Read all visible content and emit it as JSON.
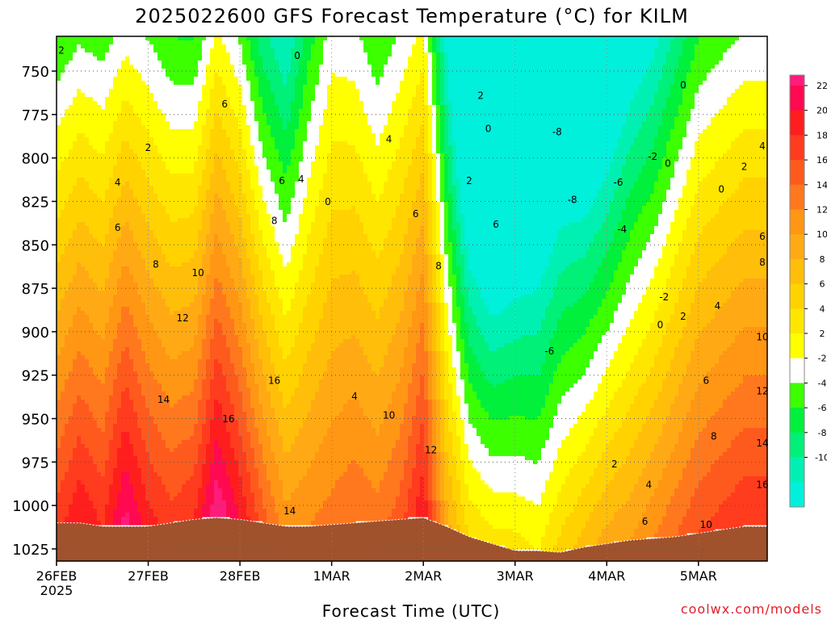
{
  "chart_data": {
    "type": "heatmap",
    "title": "2025022600 GFS Forecast Temperature (°C) for KILM",
    "xlabel": "Forecast Time (UTC)",
    "ylabel": "",
    "watermark": "coolwx.com/models",
    "x_ticks": [
      {
        "label": "26FEB",
        "sublabel": "2025",
        "hour": 0
      },
      {
        "label": "27FEB",
        "hour": 24
      },
      {
        "label": "28FEB",
        "hour": 48
      },
      {
        "label": "1MAR",
        "hour": 72
      },
      {
        "label": "2MAR",
        "hour": 96
      },
      {
        "label": "3MAR",
        "hour": 120
      },
      {
        "label": "4MAR",
        "hour": 144
      },
      {
        "label": "5MAR",
        "hour": 168
      }
    ],
    "x_range_hours": [
      0,
      186
    ],
    "y_ticks": [
      750,
      775,
      800,
      825,
      850,
      875,
      900,
      925,
      950,
      975,
      1000,
      1025
    ],
    "y_range_hpa": [
      730,
      1032
    ],
    "y_inverted": true,
    "grid": true,
    "colorbar": {
      "ticks": [
        22,
        20,
        18,
        16,
        14,
        12,
        10,
        8,
        6,
        4,
        2,
        -2,
        -4,
        -6,
        -8,
        -10
      ],
      "levels": [
        {
          "lo": 22,
          "hi": 24,
          "color": "#ff1c7a"
        },
        {
          "lo": 20,
          "hi": 22,
          "color": "#ff0a50"
        },
        {
          "lo": 18,
          "hi": 20,
          "color": "#ff1e1e"
        },
        {
          "lo": 16,
          "hi": 18,
          "color": "#ff3c1e"
        },
        {
          "lo": 14,
          "hi": 16,
          "color": "#ff5a1e"
        },
        {
          "lo": 12,
          "hi": 14,
          "color": "#ff781e"
        },
        {
          "lo": 10,
          "hi": 12,
          "color": "#ff9614"
        },
        {
          "lo": 8,
          "hi": 10,
          "color": "#ffaa14"
        },
        {
          "lo": 6,
          "hi": 8,
          "color": "#ffbe0a"
        },
        {
          "lo": 4,
          "hi": 6,
          "color": "#ffd200"
        },
        {
          "lo": 2,
          "hi": 4,
          "color": "#ffe600"
        },
        {
          "lo": 0,
          "hi": 2,
          "color": "#ffff00"
        },
        {
          "lo": -2,
          "hi": 0,
          "color": "#ffffff"
        },
        {
          "lo": -4,
          "hi": -2,
          "color": "#3cff00"
        },
        {
          "lo": -6,
          "hi": -4,
          "color": "#00f03c"
        },
        {
          "lo": -8,
          "hi": -6,
          "color": "#00f078"
        },
        {
          "lo": -10,
          "hi": -8,
          "color": "#00f0b4"
        },
        {
          "lo": -12,
          "hi": -10,
          "color": "#00f0dc"
        }
      ]
    },
    "temperature_profiles": [
      {
        "hour": 0,
        "surface_hpa": 1010,
        "t_surface": 17,
        "lapse_per_100hpa": 7.5
      },
      {
        "hour": 6,
        "surface_hpa": 1010,
        "t_surface": 20,
        "lapse_per_100hpa": 8
      },
      {
        "hour": 12,
        "surface_hpa": 1012,
        "t_surface": 18,
        "lapse_per_100hpa": 7.5
      },
      {
        "hour": 18,
        "surface_hpa": 1012,
        "t_surface": 23,
        "lapse_per_100hpa": 8.5
      },
      {
        "hour": 24,
        "surface_hpa": 1012,
        "t_surface": 19,
        "lapse_per_100hpa": 7.5
      },
      {
        "hour": 30,
        "surface_hpa": 1010,
        "t_surface": 17,
        "lapse_per_100hpa": 7.5
      },
      {
        "hour": 36,
        "surface_hpa": 1008,
        "t_surface": 18,
        "lapse_per_100hpa": 8
      },
      {
        "hour": 42,
        "surface_hpa": 1007,
        "t_surface": 24,
        "lapse_per_100hpa": 8.5
      },
      {
        "hour": 48,
        "surface_hpa": 1008,
        "t_surface": 20,
        "lapse_per_100hpa": 8
      },
      {
        "hour": 54,
        "surface_hpa": 1010,
        "t_surface": 15,
        "lapse_per_100hpa": 8
      },
      {
        "hour": 60,
        "surface_hpa": 1012,
        "t_surface": 11,
        "lapse_per_100hpa": 7.5
      },
      {
        "hour": 66,
        "surface_hpa": 1012,
        "t_surface": 12,
        "lapse_per_100hpa": 6
      },
      {
        "hour": 72,
        "surface_hpa": 1011,
        "t_surface": 13,
        "lapse_per_100hpa": 5
      },
      {
        "hour": 78,
        "surface_hpa": 1010,
        "t_surface": 14,
        "lapse_per_100hpa": 5.5
      },
      {
        "hour": 84,
        "surface_hpa": 1009,
        "t_surface": 13,
        "lapse_per_100hpa": 6
      },
      {
        "hour": 90,
        "surface_hpa": 1008,
        "t_surface": 15,
        "lapse_per_100hpa": 6
      },
      {
        "hour": 96,
        "surface_hpa": 1007,
        "t_surface": 20,
        "lapse_per_100hpa": 7
      },
      {
        "hour": 102,
        "surface_hpa": 1012,
        "t_surface": 9,
        "lapse_per_100hpa": 7
      },
      {
        "hour": 108,
        "surface_hpa": 1018,
        "t_surface": 4,
        "lapse_per_100hpa": 9
      },
      {
        "hour": 114,
        "surface_hpa": 1022,
        "t_surface": 3,
        "lapse_per_100hpa": 10
      },
      {
        "hour": 120,
        "surface_hpa": 1026,
        "t_surface": 3,
        "lapse_per_100hpa": 9
      },
      {
        "hour": 126,
        "surface_hpa": 1026,
        "t_surface": 2,
        "lapse_per_100hpa": 8
      },
      {
        "hour": 132,
        "surface_hpa": 1027,
        "t_surface": 5,
        "lapse_per_100hpa": 8
      },
      {
        "hour": 138,
        "surface_hpa": 1024,
        "t_surface": 7,
        "lapse_per_100hpa": 9
      },
      {
        "hour": 144,
        "surface_hpa": 1022,
        "t_surface": 9,
        "lapse_per_100hpa": 9
      },
      {
        "hour": 150,
        "surface_hpa": 1020,
        "t_surface": 10,
        "lapse_per_100hpa": 8
      },
      {
        "hour": 156,
        "surface_hpa": 1019,
        "t_surface": 12,
        "lapse_per_100hpa": 8
      },
      {
        "hour": 162,
        "surface_hpa": 1018,
        "t_surface": 14,
        "lapse_per_100hpa": 7.5
      },
      {
        "hour": 168,
        "surface_hpa": 1016,
        "t_surface": 16,
        "lapse_per_100hpa": 7
      },
      {
        "hour": 174,
        "surface_hpa": 1014,
        "t_surface": 17,
        "lapse_per_100hpa": 7
      },
      {
        "hour": 180,
        "surface_hpa": 1012,
        "t_surface": 18,
        "lapse_per_100hpa": 7
      },
      {
        "hour": 186,
        "surface_hpa": 1012,
        "t_surface": 18,
        "lapse_per_100hpa": 7
      }
    ],
    "contour_labels": [
      {
        "text": "2",
        "hour": 1,
        "hpa": 740
      },
      {
        "text": "0",
        "hour": 63,
        "hpa": 743
      },
      {
        "text": "6",
        "hour": 44,
        "hpa": 771
      },
      {
        "text": "2",
        "hour": 24,
        "hpa": 796
      },
      {
        "text": "4",
        "hour": 16,
        "hpa": 816
      },
      {
        "text": "6",
        "hour": 16,
        "hpa": 842
      },
      {
        "text": "4",
        "hour": 64,
        "hpa": 814
      },
      {
        "text": "6",
        "hour": 59,
        "hpa": 815
      },
      {
        "text": "0",
        "hour": 71,
        "hpa": 827
      },
      {
        "text": "8",
        "hour": 57,
        "hpa": 838
      },
      {
        "text": "8",
        "hour": 26,
        "hpa": 863
      },
      {
        "text": "10",
        "hour": 37,
        "hpa": 868
      },
      {
        "text": "12",
        "hour": 33,
        "hpa": 894
      },
      {
        "text": "16",
        "hour": 57,
        "hpa": 930
      },
      {
        "text": "14",
        "hour": 28,
        "hpa": 941
      },
      {
        "text": "16",
        "hour": 45,
        "hpa": 952
      },
      {
        "text": "14",
        "hour": 61,
        "hpa": 1005
      },
      {
        "text": "4",
        "hour": 87,
        "hpa": 791
      },
      {
        "text": "6",
        "hour": 94,
        "hpa": 834
      },
      {
        "text": "8",
        "hour": 100,
        "hpa": 864
      },
      {
        "text": "4",
        "hour": 78,
        "hpa": 939
      },
      {
        "text": "10",
        "hour": 87,
        "hpa": 950
      },
      {
        "text": "12",
        "hour": 98,
        "hpa": 970
      },
      {
        "text": "2",
        "hour": 111,
        "hpa": 766
      },
      {
        "text": "0",
        "hour": 113,
        "hpa": 785
      },
      {
        "text": "2",
        "hour": 108,
        "hpa": 815
      },
      {
        "text": "6",
        "hour": 115,
        "hpa": 840
      },
      {
        "text": "-8",
        "hour": 131,
        "hpa": 787
      },
      {
        "text": "-8",
        "hour": 135,
        "hpa": 826
      },
      {
        "text": "-6",
        "hour": 147,
        "hpa": 816
      },
      {
        "text": "-4",
        "hour": 148,
        "hpa": 843
      },
      {
        "text": "-2",
        "hour": 156,
        "hpa": 801
      },
      {
        "text": "-6",
        "hour": 129,
        "hpa": 913
      },
      {
        "text": "0",
        "hour": 164,
        "hpa": 760
      },
      {
        "text": "0",
        "hour": 160,
        "hpa": 805
      },
      {
        "text": "0",
        "hour": 174,
        "hpa": 820
      },
      {
        "text": "2",
        "hour": 180,
        "hpa": 807
      },
      {
        "text": "4",
        "hour": 188,
        "hpa": 795
      },
      {
        "text": "-2",
        "hour": 159,
        "hpa": 882
      },
      {
        "text": "0",
        "hour": 158,
        "hpa": 898
      },
      {
        "text": "2",
        "hour": 164,
        "hpa": 893
      },
      {
        "text": "4",
        "hour": 173,
        "hpa": 887
      },
      {
        "text": "6",
        "hour": 188,
        "hpa": 847
      },
      {
        "text": "8",
        "hour": 191,
        "hpa": 862
      },
      {
        "text": "10",
        "hour": 186,
        "hpa": 905
      },
      {
        "text": "12",
        "hour": 188,
        "hpa": 936
      },
      {
        "text": "14",
        "hour": 187,
        "hpa": 966
      },
      {
        "text": "16",
        "hour": 185,
        "hpa": 990
      },
      {
        "text": "6",
        "hour": 170,
        "hpa": 930
      },
      {
        "text": "8",
        "hour": 172,
        "hpa": 962
      },
      {
        "text": "10",
        "hour": 170,
        "hpa": 1013
      },
      {
        "text": "2",
        "hour": 146,
        "hpa": 978
      },
      {
        "text": "4",
        "hour": 155,
        "hpa": 990
      },
      {
        "text": "6",
        "hour": 154,
        "hpa": 1011
      }
    ]
  }
}
